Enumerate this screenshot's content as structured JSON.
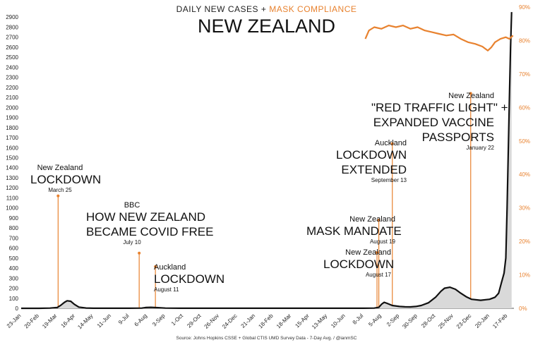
{
  "title_left": "DAILY NEW  CASES",
  "title_plus": "+",
  "title_right": "MASK COMPLIANCE",
  "subtitle": "NEW ZEALAND",
  "source": "Source: Johns Hopkins CSSE + Global CTIS UMD Survey Data - 7-Day Avg. / @ianmSC",
  "colors": {
    "cases": "#111111",
    "mask": "#e8822f",
    "annotation": "#e8822f"
  },
  "chart_data": {
    "type": "line",
    "x_ticks": [
      "23-Jan",
      "20-Feb",
      "19-Mar",
      "16-Apr",
      "14-May",
      "11-Jun",
      "9-Jul",
      "6-Aug",
      "3-Sep",
      "1-Oct",
      "29-Oct",
      "26-Nov",
      "24-Dec",
      "21-Jan",
      "18-Feb",
      "18-Mar",
      "15-Apr",
      "13-May",
      "10-Jun",
      "8-Jul",
      "5-Aug",
      "2-Sep",
      "30-Sep",
      "28-Oct",
      "25-Nov",
      "23-Dec",
      "20-Jan",
      "17-Feb"
    ],
    "ylim_left": [
      0,
      3000
    ],
    "y_ticks_left": [
      0,
      100,
      200,
      300,
      400,
      500,
      600,
      700,
      800,
      900,
      1000,
      1100,
      1200,
      1300,
      1400,
      1500,
      1600,
      1700,
      1800,
      1900,
      2000,
      2100,
      2200,
      2300,
      2400,
      2500,
      2600,
      2700,
      2800,
      2900
    ],
    "ylim_right": [
      0,
      90
    ],
    "y_ticks_right": [
      "0%",
      "10%",
      "20%",
      "30%",
      "40%",
      "50%",
      "60%",
      "70%",
      "80%",
      "90%"
    ],
    "series": [
      {
        "name": "DAILY NEW  CASES",
        "axis": "left",
        "points": [
          [
            0,
            0
          ],
          [
            1,
            0
          ],
          [
            1.6,
            2
          ],
          [
            2,
            8
          ],
          [
            2.2,
            30
          ],
          [
            2.4,
            60
          ],
          [
            2.55,
            75
          ],
          [
            2.75,
            70
          ],
          [
            2.95,
            40
          ],
          [
            3.2,
            12
          ],
          [
            3.6,
            3
          ],
          [
            4,
            1
          ],
          [
            5,
            1
          ],
          [
            6,
            1
          ],
          [
            6.7,
            2
          ],
          [
            6.9,
            8
          ],
          [
            7.2,
            10
          ],
          [
            7.6,
            6
          ],
          [
            8,
            2
          ],
          [
            9,
            1
          ],
          [
            10,
            1
          ],
          [
            11,
            1
          ],
          [
            12,
            1
          ],
          [
            13,
            1
          ],
          [
            14,
            1
          ],
          [
            15,
            1
          ],
          [
            16,
            1
          ],
          [
            17,
            1
          ],
          [
            18,
            1
          ],
          [
            19,
            1
          ],
          [
            19.6,
            2
          ],
          [
            19.85,
            10
          ],
          [
            20,
            40
          ],
          [
            20.15,
            60
          ],
          [
            20.3,
            50
          ],
          [
            20.6,
            28
          ],
          [
            21,
            18
          ],
          [
            21.3,
            15
          ],
          [
            21.6,
            14
          ],
          [
            21.9,
            18
          ],
          [
            22.2,
            28
          ],
          [
            22.6,
            55
          ],
          [
            23,
            110
          ],
          [
            23.3,
            170
          ],
          [
            23.5,
            200
          ],
          [
            23.8,
            210
          ],
          [
            24.1,
            190
          ],
          [
            24.4,
            150
          ],
          [
            24.7,
            115
          ],
          [
            25,
            90
          ],
          [
            25.5,
            80
          ],
          [
            26,
            90
          ],
          [
            26.3,
            110
          ],
          [
            26.5,
            150
          ],
          [
            26.65,
            250
          ],
          [
            26.8,
            350
          ],
          [
            26.9,
            500
          ],
          [
            26.97,
            1000
          ],
          [
            27.03,
            1500
          ],
          [
            27.1,
            2100
          ],
          [
            27.16,
            2600
          ],
          [
            27.22,
            2950
          ]
        ]
      },
      {
        "name": "MASK COMPLIANCE",
        "axis": "right",
        "points": [
          [
            19.1,
            80.5
          ],
          [
            19.3,
            83
          ],
          [
            19.6,
            84
          ],
          [
            20,
            83.5
          ],
          [
            20.4,
            84.5
          ],
          [
            20.8,
            84
          ],
          [
            21.2,
            84.5
          ],
          [
            21.6,
            83.5
          ],
          [
            22,
            84
          ],
          [
            22.4,
            83
          ],
          [
            22.8,
            82.5
          ],
          [
            23.2,
            82
          ],
          [
            23.6,
            81.5
          ],
          [
            24,
            81.8
          ],
          [
            24.4,
            80.5
          ],
          [
            24.8,
            79.5
          ],
          [
            25.2,
            79
          ],
          [
            25.6,
            78.2
          ],
          [
            25.9,
            77
          ],
          [
            26.1,
            78
          ],
          [
            26.3,
            79.5
          ],
          [
            26.6,
            80.5
          ],
          [
            26.9,
            81
          ],
          [
            27.1,
            80.5
          ],
          [
            27.3,
            81.5
          ]
        ]
      }
    ],
    "annotations": [
      {
        "x": 2.05,
        "y": 1120,
        "lines": [
          "New Zealand",
          "LOCKDOWN"
        ],
        "date": "March 25"
      },
      {
        "x": 6.55,
        "y": 550,
        "lines": [
          "BBC",
          "HOW NEW ZEALAND",
          "BECAME COVID FREE"
        ],
        "date": "July 10"
      },
      {
        "x": 7.45,
        "y": 415,
        "lines": [
          "Auckland",
          "LOCKDOWN"
        ],
        "date": "August 11"
      },
      {
        "x": 19.75,
        "y": 555,
        "lines": [
          "New Zealand",
          "LOCKDOWN"
        ],
        "date": "August 17"
      },
      {
        "x": 19.85,
        "y": 880,
        "lines": [
          "New Zealand",
          "MASK MANDATE"
        ],
        "date": "August 19"
      },
      {
        "x": 20.6,
        "y": 1640,
        "lines": [
          "Auckland",
          "LOCKDOWN",
          "EXTENDED"
        ],
        "date": "September 13"
      },
      {
        "x": 24.95,
        "y": 2140,
        "lines": [
          "New Zealand",
          "\"RED TRAFFIC LIGHT\" +",
          "EXPANDED VACCINE",
          "PASSPORTS"
        ],
        "date": "January 22"
      }
    ]
  }
}
